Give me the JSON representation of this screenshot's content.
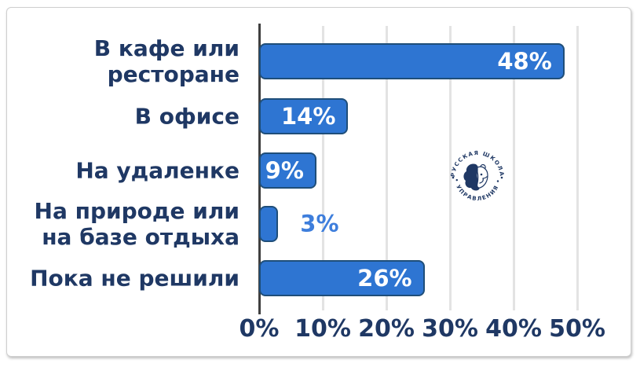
{
  "page": {
    "background": "#ffffff"
  },
  "chart_data": {
    "type": "bar",
    "orientation": "horizontal",
    "categories": [
      "В кафе или ресторане",
      "В офисе",
      "На удаленке",
      "На природе или на базе отдыха",
      "Пока не решили"
    ],
    "category_lines": [
      [
        "В кафе или",
        "ресторане"
      ],
      [
        "В офисе"
      ],
      [
        "На удаленке"
      ],
      [
        "На природе или",
        "на базе отдыха"
      ],
      [
        "Пока не решили"
      ]
    ],
    "values": [
      48,
      14,
      9,
      3,
      26
    ],
    "value_labels": [
      "48%",
      "14%",
      "9%",
      "3%",
      "26%"
    ],
    "x_ticks": [
      "0%",
      "10%",
      "20%",
      "30%",
      "40%",
      "50%"
    ],
    "x_tick_values": [
      0,
      10,
      20,
      30,
      40,
      50
    ],
    "xlim": [
      0,
      50
    ],
    "grid": "vertical",
    "legend": "none",
    "colors": {
      "bar_fill": "#2e75d2",
      "bar_border": "#1f4e79",
      "category_text": "#1f3864",
      "axis_text": "#1f3864",
      "value_inside": "#ffffff",
      "value_outside": "#3e7edc",
      "grid_line": "#e3e3e3",
      "axis_line": "#404040"
    }
  },
  "watermark": {
    "name": "Русская Школа Управления",
    "text_top": "РУССКАЯ ШКОЛА",
    "text_bottom": "• УПРАВЛЕНИЯ •",
    "color": "#1f3864"
  }
}
